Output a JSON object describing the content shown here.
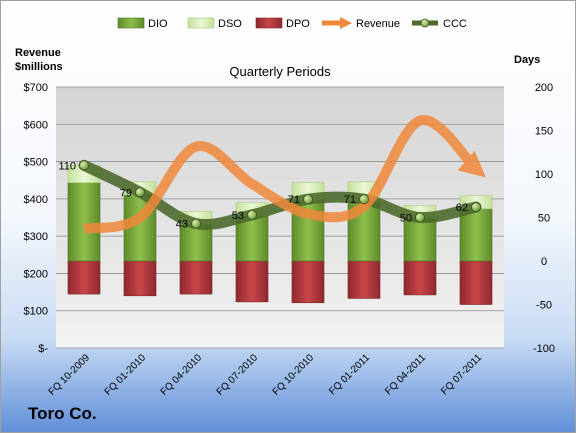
{
  "company": "Toro Co.",
  "chart_data": {
    "type": "bar",
    "title": "Quarterly Periods",
    "ylabel_left": "Revenue\n$millions",
    "ylabel_right": "Days",
    "categories": [
      "FQ 10-2009",
      "FQ 01-2010",
      "FQ 04-2010",
      "FQ 07-2010",
      "FQ 10-2010",
      "FQ 01-2011",
      "FQ 04-2011",
      "FQ 07-2011"
    ],
    "left_axis": {
      "min": 0,
      "max": 700,
      "step": 100,
      "tick_labels": [
        "$-",
        "$100",
        "$200",
        "$300",
        "$400",
        "$500",
        "$600",
        "$700"
      ]
    },
    "right_axis": {
      "min": -100,
      "max": 200,
      "step": 50,
      "tick_labels": [
        "-100",
        "-50",
        "0",
        "50",
        "100",
        "150",
        "200"
      ]
    },
    "legend": {
      "position": "top",
      "entries": [
        "DIO",
        "DSO",
        "DPO",
        "Revenue",
        "CCC"
      ]
    },
    "series": [
      {
        "name": "DIO",
        "kind": "stacked-bar",
        "axis": "right",
        "color": "#7aa83c",
        "values": [
          90,
          76,
          42,
          52,
          70,
          69,
          49,
          60
        ]
      },
      {
        "name": "DSO",
        "kind": "stacked-bar",
        "axis": "right",
        "color": "#d8ecb4",
        "values": [
          20,
          15,
          15,
          15,
          20,
          22,
          15,
          15
        ]
      },
      {
        "name": "DPO",
        "kind": "bar-negative",
        "axis": "right",
        "color": "#b6383c",
        "values": [
          -38,
          -40,
          -38,
          -47,
          -48,
          -43,
          -39,
          -50
        ]
      },
      {
        "name": "Revenue",
        "kind": "smooth-line-arrow",
        "axis": "left",
        "color": "#f0883a",
        "values": [
          320,
          350,
          540,
          440,
          360,
          380,
          610,
          480
        ]
      },
      {
        "name": "CCC",
        "kind": "line-markers",
        "axis": "right",
        "color": "#4d6a2c",
        "values": [
          110,
          79,
          43,
          53,
          71,
          71,
          50,
          62
        ]
      }
    ],
    "data_labels": [
      "110",
      "79",
      "43",
      "53",
      "71",
      "71",
      "50",
      "62"
    ],
    "grid": "horizontal"
  }
}
